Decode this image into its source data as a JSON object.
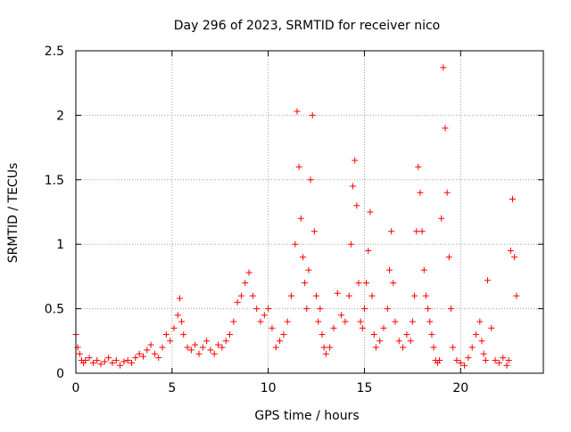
{
  "chart_data": {
    "type": "scatter",
    "title": "Day 296 of 2023, SRMTID for receiver nico",
    "xlabel": "GPS time / hours",
    "ylabel": "SRMTID / TECUs",
    "xlim": [
      0,
      24.3
    ],
    "ylim": [
      0,
      2.5
    ],
    "x_ticks": [
      0,
      5,
      10,
      15,
      20
    ],
    "x_tick_labels": [
      "0",
      "5",
      "10",
      "15",
      "20"
    ],
    "y_ticks": [
      0,
      0.5,
      1,
      1.5,
      2,
      2.5
    ],
    "y_tick_labels": [
      "0",
      "0.5",
      "1",
      "1.5",
      "2",
      "2.5"
    ],
    "grid": true,
    "marker": "+",
    "series": [
      {
        "name": "SRMTID",
        "color": "#ff0000",
        "x": [
          0.0,
          0.1,
          0.2,
          0.3,
          0.4,
          0.5,
          0.7,
          0.9,
          1.1,
          1.3,
          1.5,
          1.7,
          1.9,
          2.1,
          2.3,
          2.5,
          2.7,
          2.9,
          3.1,
          3.3,
          3.5,
          3.7,
          3.9,
          4.1,
          4.3,
          4.5,
          4.7,
          4.9,
          5.1,
          5.3,
          5.4,
          5.5,
          5.6,
          5.8,
          6.0,
          6.2,
          6.4,
          6.6,
          6.8,
          7.0,
          7.2,
          7.4,
          7.6,
          7.8,
          8.0,
          8.2,
          8.4,
          8.6,
          8.8,
          9.0,
          9.2,
          9.4,
          9.6,
          9.8,
          10.0,
          10.2,
          10.4,
          10.6,
          10.8,
          11.0,
          11.2,
          11.4,
          11.5,
          11.6,
          11.7,
          11.8,
          11.9,
          12.0,
          12.1,
          12.2,
          12.3,
          12.4,
          12.5,
          12.6,
          12.7,
          12.8,
          12.9,
          13.0,
          13.2,
          13.4,
          13.6,
          13.8,
          14.0,
          14.2,
          14.3,
          14.4,
          14.5,
          14.6,
          14.7,
          14.8,
          14.9,
          15.0,
          15.1,
          15.2,
          15.3,
          15.4,
          15.5,
          15.6,
          15.8,
          16.0,
          16.2,
          16.3,
          16.4,
          16.5,
          16.6,
          16.8,
          17.0,
          17.2,
          17.4,
          17.5,
          17.6,
          17.7,
          17.8,
          17.9,
          18.0,
          18.1,
          18.2,
          18.3,
          18.4,
          18.5,
          18.6,
          18.7,
          18.8,
          18.9,
          19.0,
          19.1,
          19.2,
          19.3,
          19.4,
          19.5,
          19.6,
          19.8,
          20.0,
          20.2,
          20.4,
          20.6,
          20.8,
          21.0,
          21.1,
          21.2,
          21.3,
          21.4,
          21.6,
          21.8,
          22.0,
          22.2,
          22.4,
          22.5,
          22.6,
          22.7,
          22.8,
          22.9
        ],
        "y": [
          0.3,
          0.2,
          0.15,
          0.1,
          0.08,
          0.1,
          0.12,
          0.08,
          0.1,
          0.07,
          0.09,
          0.12,
          0.08,
          0.1,
          0.06,
          0.09,
          0.1,
          0.08,
          0.12,
          0.15,
          0.13,
          0.18,
          0.22,
          0.15,
          0.12,
          0.2,
          0.3,
          0.25,
          0.35,
          0.45,
          0.58,
          0.4,
          0.3,
          0.2,
          0.18,
          0.22,
          0.15,
          0.2,
          0.25,
          0.18,
          0.15,
          0.22,
          0.2,
          0.25,
          0.3,
          0.4,
          0.55,
          0.6,
          0.7,
          0.78,
          0.6,
          0.5,
          0.4,
          0.45,
          0.5,
          0.35,
          0.2,
          0.25,
          0.3,
          0.4,
          0.6,
          1.0,
          2.03,
          1.6,
          1.2,
          0.9,
          0.7,
          0.5,
          0.8,
          1.5,
          2.0,
          1.1,
          0.6,
          0.4,
          0.5,
          0.3,
          0.2,
          0.15,
          0.2,
          0.35,
          0.62,
          0.45,
          0.4,
          0.6,
          1.0,
          1.45,
          1.65,
          1.3,
          0.7,
          0.4,
          0.35,
          0.5,
          0.7,
          0.95,
          1.25,
          0.6,
          0.3,
          0.2,
          0.25,
          0.35,
          0.5,
          0.8,
          1.1,
          0.7,
          0.4,
          0.25,
          0.2,
          0.3,
          0.25,
          0.4,
          0.6,
          1.1,
          1.6,
          1.4,
          1.1,
          0.8,
          0.6,
          0.5,
          0.4,
          0.3,
          0.2,
          0.1,
          0.08,
          0.1,
          1.2,
          2.37,
          1.9,
          1.4,
          0.9,
          0.5,
          0.2,
          0.1,
          0.08,
          0.06,
          0.12,
          0.2,
          0.3,
          0.4,
          0.25,
          0.15,
          0.1,
          0.72,
          0.35,
          0.1,
          0.08,
          0.12,
          0.06,
          0.1,
          0.95,
          1.35,
          0.9,
          0.6
        ]
      }
    ]
  }
}
